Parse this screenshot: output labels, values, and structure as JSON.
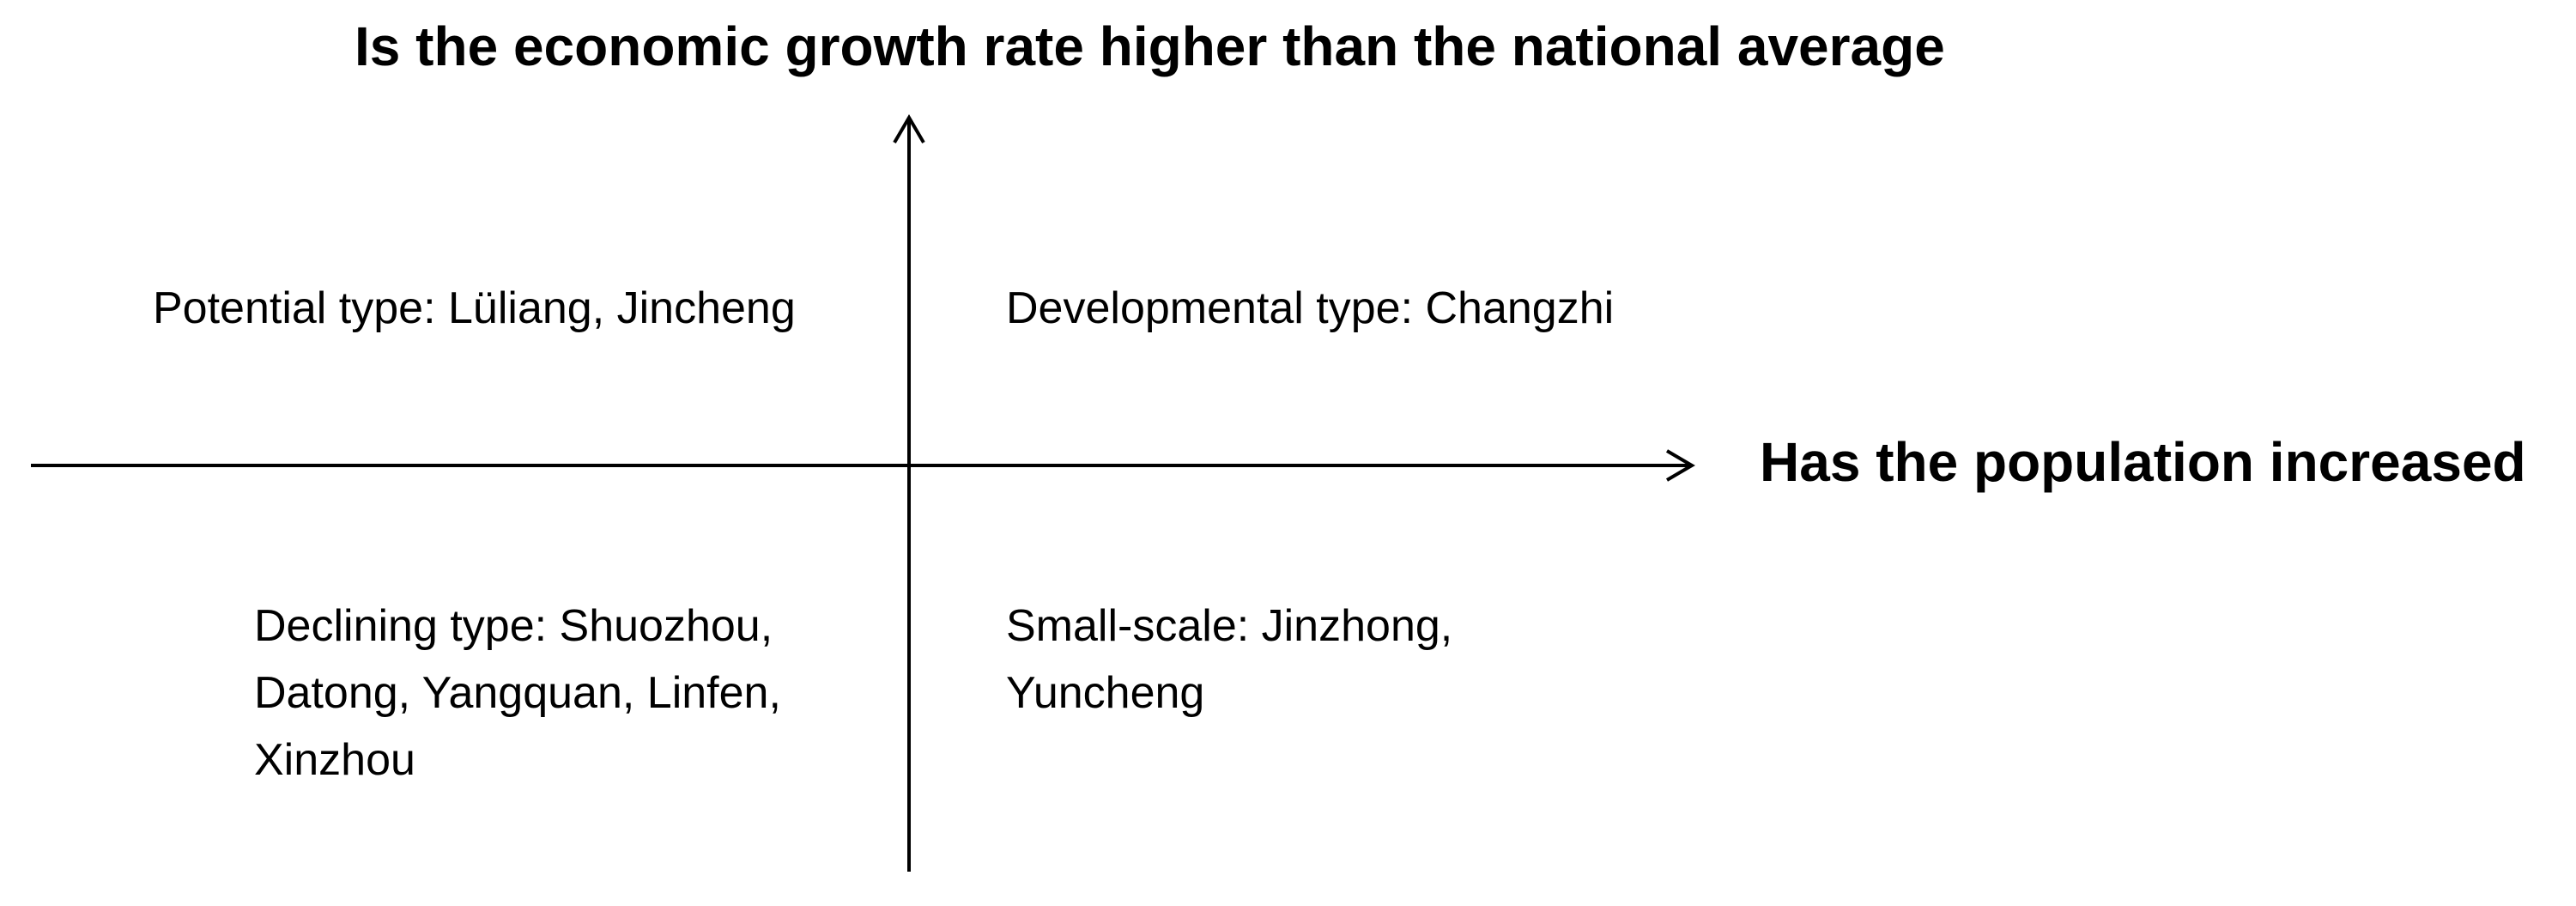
{
  "diagram": {
    "y_axis_title": "Is the economic growth rate higher than the national average",
    "x_axis_title": "Has the population increased",
    "quadrants": {
      "top_left": {
        "lines": [
          "Potential type: Lüliang, Jincheng"
        ]
      },
      "top_right": {
        "lines": [
          "Developmental type: Changzhi"
        ]
      },
      "bottom_left": {
        "lines": [
          "Declining type: Shuozhou,",
          "Datong, Yangquan, Linfen,",
          "Xinzhou"
        ]
      },
      "bottom_right": {
        "lines": [
          "Small-scale: Jinzhong,",
          "Yuncheng"
        ]
      }
    },
    "colors": {
      "axis": "#000000",
      "text": "#000000",
      "background": "#ffffff"
    }
  }
}
